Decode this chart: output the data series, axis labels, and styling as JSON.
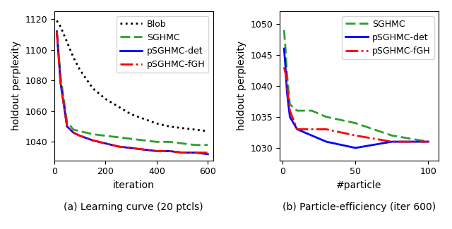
{
  "left": {
    "blob_x": [
      10,
      25,
      50,
      75,
      100,
      150,
      200,
      250,
      300,
      350,
      400,
      450,
      500,
      550,
      600
    ],
    "blob_y": [
      1119,
      1115,
      1105,
      1095,
      1087,
      1075,
      1068,
      1063,
      1058,
      1055,
      1052,
      1050,
      1049,
      1048,
      1047
    ],
    "sghmc_x": [
      10,
      25,
      50,
      75,
      100,
      150,
      200,
      250,
      300,
      350,
      400,
      450,
      500,
      550,
      600
    ],
    "sghmc_y": [
      1112,
      1082,
      1053,
      1048,
      1047,
      1045,
      1044,
      1043,
      1042,
      1041,
      1040,
      1040,
      1039,
      1038,
      1038
    ],
    "psghmc_det_x": [
      10,
      25,
      50,
      75,
      100,
      150,
      200,
      250,
      300,
      350,
      400,
      450,
      500,
      550,
      600
    ],
    "psghmc_det_y": [
      1112,
      1078,
      1050,
      1046,
      1044,
      1041,
      1039,
      1037,
      1036,
      1035,
      1034,
      1034,
      1033,
      1033,
      1032
    ],
    "psghmc_fgh_x": [
      10,
      25,
      50,
      75,
      100,
      150,
      200,
      250,
      300,
      350,
      400,
      450,
      500,
      550,
      600
    ],
    "psghmc_fgh_y": [
      1112,
      1078,
      1050,
      1046,
      1044,
      1041,
      1039,
      1037,
      1036,
      1035,
      1034,
      1034,
      1033,
      1033,
      1033
    ],
    "xlim": [
      0,
      620
    ],
    "ylim": [
      1028,
      1125
    ],
    "yticks": [
      1040,
      1060,
      1080,
      1100,
      1120
    ],
    "xticks": [
      0,
      200,
      400,
      600
    ],
    "xlabel": "iteration",
    "ylabel": "holdout perplexity",
    "caption": "(a) Learning curve (20 ptcls)"
  },
  "right": {
    "sghmc_x": [
      1,
      2,
      3,
      5,
      10,
      20,
      30,
      50,
      75,
      100
    ],
    "sghmc_y": [
      1049,
      1046,
      1042,
      1037,
      1036,
      1036,
      1035,
      1034,
      1032,
      1031
    ],
    "psghmc_det_x": [
      1,
      2,
      3,
      5,
      10,
      20,
      30,
      50,
      75,
      100
    ],
    "psghmc_det_y": [
      1046,
      1043,
      1039,
      1035,
      1033,
      1032,
      1031,
      1030,
      1031,
      1031
    ],
    "psghmc_fgh_x": [
      1,
      2,
      3,
      5,
      10,
      20,
      30,
      50,
      75,
      100
    ],
    "psghmc_fgh_y": [
      1043,
      1042,
      1040,
      1036,
      1033,
      1033,
      1033,
      1032,
      1031,
      1031
    ],
    "xlim": [
      -2,
      107
    ],
    "ylim": [
      1028,
      1052
    ],
    "yticks": [
      1030,
      1035,
      1040,
      1045,
      1050
    ],
    "xticks": [
      0,
      50,
      100
    ],
    "xlabel": "#particle",
    "ylabel": "holdout perplexity",
    "caption": "(b) Particle-efficiency (iter 600)"
  },
  "blob_color": "#000000",
  "sghmc_color": "#2ca02c",
  "psghmc_det_color": "#0000ff",
  "psghmc_fgh_color": "#ff0000",
  "caption_fontsize": 10,
  "tick_fontsize": 9,
  "label_fontsize": 10,
  "legend_fontsize": 9,
  "figsize": [
    6.4,
    3.25
  ],
  "dpi": 100
}
